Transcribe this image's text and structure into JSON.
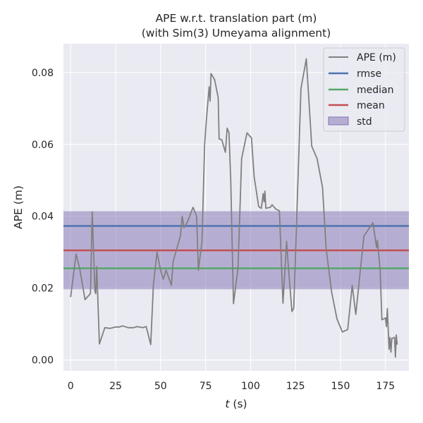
{
  "chart_data": {
    "type": "line",
    "title_lines": [
      "APE w.r.t. translation part (m)",
      "(with Sim(3) Umeyama alignment)"
    ],
    "xlabel_var": "t",
    "xlabel_unit": " (s)",
    "ylabel": "APE (m)",
    "xlim": [
      -4,
      188
    ],
    "ylim": [
      -0.003,
      0.088
    ],
    "xticks": [
      0,
      25,
      50,
      75,
      100,
      125,
      150,
      175
    ],
    "xtick_labels": [
      "0",
      "25",
      "50",
      "75",
      "100",
      "125",
      "150",
      "175"
    ],
    "yticks": [
      0.0,
      0.02,
      0.04,
      0.06,
      0.08
    ],
    "ytick_labels": [
      "0.00",
      "0.02",
      "0.04",
      "0.06",
      "0.08"
    ],
    "grid": true,
    "legend_position": "top-right",
    "legend": [
      "APE (m)",
      "rmse",
      "median",
      "mean",
      "std"
    ],
    "colors": {
      "ape": "#808080",
      "rmse": "#4c72b0",
      "median": "#55a868",
      "mean": "#c44e52",
      "std": "#8172b2",
      "background": "#eaeaf2"
    },
    "stats": {
      "rmse": 0.0373,
      "median": 0.0255,
      "mean": 0.0305,
      "std_lower": 0.0197,
      "std_upper": 0.0414
    },
    "series": [
      {
        "name": "APE (m)",
        "points": [
          [
            0,
            0.0175
          ],
          [
            3,
            0.0295
          ],
          [
            5,
            0.0255
          ],
          [
            8,
            0.0168
          ],
          [
            11,
            0.0185
          ],
          [
            12,
            0.0412
          ],
          [
            13.5,
            0.019
          ],
          [
            14,
            0.0185
          ],
          [
            14.5,
            0.026
          ],
          [
            16,
            0.0045
          ],
          [
            19,
            0.009
          ],
          [
            22,
            0.0088
          ],
          [
            25,
            0.0092
          ],
          [
            27,
            0.0092
          ],
          [
            29,
            0.0095
          ],
          [
            32,
            0.009
          ],
          [
            35,
            0.009
          ],
          [
            37,
            0.0093
          ],
          [
            40,
            0.009
          ],
          [
            42,
            0.0093
          ],
          [
            44.5,
            0.0043
          ],
          [
            46,
            0.021
          ],
          [
            48,
            0.03
          ],
          [
            50,
            0.025
          ],
          [
            51.5,
            0.0225
          ],
          [
            53,
            0.025
          ],
          [
            56,
            0.0208
          ],
          [
            57,
            0.0275
          ],
          [
            59,
            0.031
          ],
          [
            61,
            0.0345
          ],
          [
            62,
            0.04
          ],
          [
            63,
            0.0368
          ],
          [
            65,
            0.0385
          ],
          [
            68,
            0.0425
          ],
          [
            70,
            0.04
          ],
          [
            71,
            0.025
          ],
          [
            73,
            0.033
          ],
          [
            74.5,
            0.06
          ],
          [
            75.5,
            0.0672
          ],
          [
            77,
            0.076
          ],
          [
            77.5,
            0.072
          ],
          [
            78,
            0.0797
          ],
          [
            80,
            0.078
          ],
          [
            82,
            0.073
          ],
          [
            82.5,
            0.0615
          ],
          [
            84,
            0.0613
          ],
          [
            86,
            0.0578
          ],
          [
            87,
            0.0645
          ],
          [
            88,
            0.0632
          ],
          [
            89,
            0.05
          ],
          [
            90.5,
            0.0157
          ],
          [
            93,
            0.0255
          ],
          [
            95,
            0.056
          ],
          [
            98,
            0.0632
          ],
          [
            100.5,
            0.0618
          ],
          [
            102,
            0.051
          ],
          [
            104.5,
            0.0427
          ],
          [
            106,
            0.0422
          ],
          [
            107,
            0.0463
          ],
          [
            107.5,
            0.044
          ],
          [
            108,
            0.047
          ],
          [
            108.5,
            0.0422
          ],
          [
            111,
            0.0425
          ],
          [
            112,
            0.0432
          ],
          [
            114,
            0.042
          ],
          [
            116,
            0.0415
          ],
          [
            118,
            0.0158
          ],
          [
            120,
            0.033
          ],
          [
            121,
            0.026
          ],
          [
            123,
            0.0135
          ],
          [
            124,
            0.0145
          ],
          [
            128,
            0.0755
          ],
          [
            131,
            0.0838
          ],
          [
            134,
            0.0595
          ],
          [
            137,
            0.056
          ],
          [
            140,
            0.048
          ],
          [
            142,
            0.031
          ],
          [
            145,
            0.019
          ],
          [
            148,
            0.0115
          ],
          [
            151,
            0.0078
          ],
          [
            154,
            0.0085
          ],
          [
            156.5,
            0.0208
          ],
          [
            158.5,
            0.0127
          ],
          [
            161,
            0.025
          ],
          [
            163,
            0.0345
          ],
          [
            168,
            0.0382
          ],
          [
            170,
            0.0313
          ],
          [
            170.5,
            0.0333
          ],
          [
            172,
            0.025
          ],
          [
            173,
            0.0112
          ],
          [
            175,
            0.0117
          ],
          [
            175.5,
            0.0093
          ],
          [
            176,
            0.0143
          ],
          [
            177,
            0.003
          ],
          [
            177.5,
            0.0063
          ],
          [
            178,
            0.0022
          ],
          [
            178.5,
            0.006
          ],
          [
            180,
            0.0063
          ],
          [
            180.5,
            0.0008
          ],
          [
            181,
            0.007
          ],
          [
            181.5,
            0.0043
          ]
        ]
      }
    ]
  }
}
